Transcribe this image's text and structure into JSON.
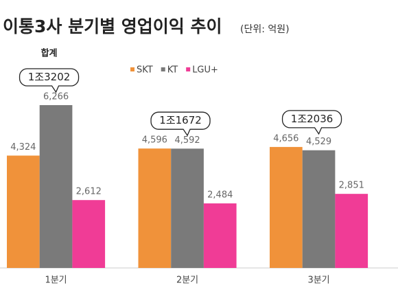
{
  "chart_data": {
    "type": "bar",
    "title": "이통3사 분기별 영업이익 추이",
    "subtitle": "(단위: 억원)",
    "categories": [
      "1분기",
      "2분기",
      "3분기"
    ],
    "series": [
      {
        "name": "SKT",
        "color": "#f0923a",
        "values": [
          4324,
          4596,
          4656
        ],
        "value_labels": [
          "4,324",
          "4,596",
          "4,656"
        ]
      },
      {
        "name": "KT",
        "color": "#7a7a7a",
        "values": [
          6266,
          4592,
          4529
        ],
        "value_labels": [
          "6,266",
          "4,592",
          "4,529"
        ]
      },
      {
        "name": "LGU+",
        "color": "#f03c96",
        "values": [
          2612,
          2484,
          2851
        ],
        "value_labels": [
          "2,612",
          "2,484",
          "2,851"
        ]
      }
    ],
    "total_title": "합계",
    "totals": [
      "1조3202",
      "1조1672",
      "1조2036"
    ]
  }
}
